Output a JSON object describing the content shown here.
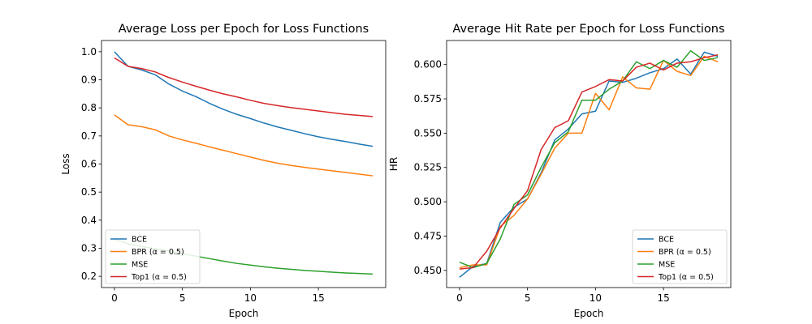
{
  "chart_data": [
    {
      "type": "line",
      "title": "Average Loss per Epoch for Loss Functions",
      "xlabel": "Epoch",
      "ylabel": "Loss",
      "xlim": [
        -0.95,
        19.95
      ],
      "ylim": [
        0.16,
        1.04
      ],
      "xticks": [
        0,
        5,
        10,
        15
      ],
      "yticks": [
        0.2,
        0.3,
        0.4,
        0.5,
        0.6,
        0.7,
        0.8,
        0.9,
        1.0
      ],
      "ytick_labels": [
        "0.2",
        "0.3",
        "0.4",
        "0.5",
        "0.6",
        "0.7",
        "0.8",
        "0.9",
        "1.0"
      ],
      "grid": false,
      "legend_position": "lower-left",
      "x": [
        0,
        1,
        2,
        3,
        4,
        5,
        6,
        7,
        8,
        9,
        10,
        11,
        12,
        13,
        14,
        15,
        16,
        17,
        18,
        19
      ],
      "series": [
        {
          "name": "BCE",
          "color": "#1f77b4",
          "values": [
            1.0,
            0.948,
            0.935,
            0.918,
            0.885,
            0.86,
            0.84,
            0.816,
            0.795,
            0.777,
            0.762,
            0.746,
            0.732,
            0.72,
            0.708,
            0.697,
            0.688,
            0.68,
            0.671,
            0.663
          ]
        },
        {
          "name": "BPR (α = 0.5)",
          "color": "#ff7f0e",
          "values": [
            0.775,
            0.74,
            0.733,
            0.722,
            0.7,
            0.686,
            0.674,
            0.661,
            0.649,
            0.637,
            0.625,
            0.613,
            0.603,
            0.595,
            0.588,
            0.582,
            0.576,
            0.57,
            0.564,
            0.558
          ]
        },
        {
          "name": "MSE",
          "color": "#2ca02c",
          "values": [
            0.332,
            0.316,
            0.306,
            0.298,
            0.29,
            0.28,
            0.272,
            0.263,
            0.254,
            0.246,
            0.24,
            0.234,
            0.229,
            0.225,
            0.221,
            0.218,
            0.215,
            0.212,
            0.21,
            0.208
          ]
        },
        {
          "name": "Top1 (α = 0.5)",
          "color": "#d62728",
          "values": [
            0.978,
            0.948,
            0.94,
            0.928,
            0.908,
            0.892,
            0.877,
            0.863,
            0.85,
            0.839,
            0.827,
            0.816,
            0.808,
            0.801,
            0.795,
            0.789,
            0.783,
            0.777,
            0.773,
            0.769
          ]
        }
      ]
    },
    {
      "type": "line",
      "title": "Average Hit Rate per Epoch for Loss Functions",
      "xlabel": "Epoch",
      "ylabel": "HR",
      "xlim": [
        -0.95,
        19.95
      ],
      "ylim": [
        0.4375,
        0.6175
      ],
      "xticks": [
        0,
        5,
        10,
        15
      ],
      "yticks": [
        0.45,
        0.475,
        0.5,
        0.525,
        0.55,
        0.575,
        0.6
      ],
      "ytick_labels": [
        "0.450",
        "0.475",
        "0.500",
        "0.525",
        "0.550",
        "0.575",
        "0.600"
      ],
      "grid": false,
      "legend_position": "lower-right",
      "x": [
        0,
        1,
        2,
        3,
        4,
        5,
        6,
        7,
        8,
        9,
        10,
        11,
        12,
        13,
        14,
        15,
        16,
        17,
        18,
        19
      ],
      "series": [
        {
          "name": "BCE",
          "color": "#1f77b4",
          "values": [
            0.445,
            0.453,
            0.455,
            0.485,
            0.496,
            0.502,
            0.521,
            0.545,
            0.553,
            0.564,
            0.566,
            0.588,
            0.587,
            0.59,
            0.594,
            0.597,
            0.604,
            0.593,
            0.609,
            0.606
          ]
        },
        {
          "name": "BPR (α = 0.5)",
          "color": "#ff7f0e",
          "values": [
            0.452,
            0.454,
            0.454,
            0.482,
            0.49,
            0.502,
            0.52,
            0.539,
            0.55,
            0.55,
            0.579,
            0.567,
            0.591,
            0.583,
            0.582,
            0.603,
            0.595,
            0.592,
            0.606,
            0.602
          ]
        },
        {
          "name": "MSE",
          "color": "#2ca02c",
          "values": [
            0.456,
            0.452,
            0.455,
            0.473,
            0.498,
            0.505,
            0.525,
            0.543,
            0.551,
            0.574,
            0.574,
            0.582,
            0.588,
            0.602,
            0.597,
            0.603,
            0.598,
            0.61,
            0.603,
            0.605
          ]
        },
        {
          "name": "Top1 (α = 0.5)",
          "color": "#d62728",
          "values": [
            0.451,
            0.452,
            0.464,
            0.481,
            0.495,
            0.508,
            0.538,
            0.554,
            0.559,
            0.58,
            0.584,
            0.589,
            0.588,
            0.598,
            0.601,
            0.596,
            0.601,
            0.602,
            0.605,
            0.607
          ]
        }
      ]
    }
  ]
}
